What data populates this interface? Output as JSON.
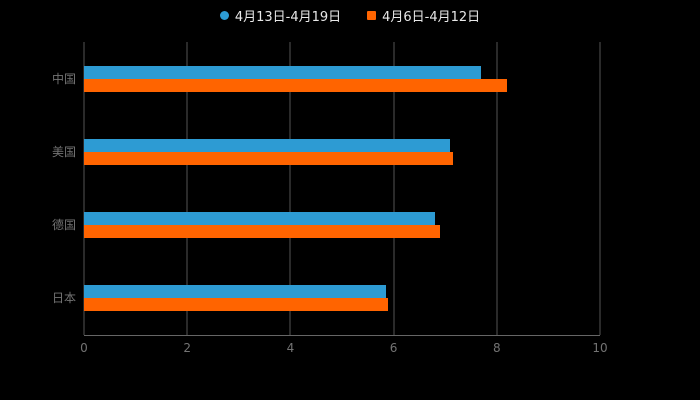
{
  "legend": {
    "items": [
      {
        "label": "4月13日-4月19日",
        "color": "#2d9bd3",
        "shape": "circle"
      },
      {
        "label": "4月6日-4月12日",
        "color": "#ff6400",
        "shape": "square"
      }
    ]
  },
  "chart_data": {
    "type": "bar",
    "orientation": "horizontal",
    "title": "",
    "categories": [
      "中国",
      "美国",
      "德国",
      "日本"
    ],
    "series": [
      {
        "name": "4月13日-4月19日",
        "color": "#2d9bd3",
        "values": [
          7.7,
          7.1,
          6.8,
          5.85
        ]
      },
      {
        "name": "4月6日-4月12日",
        "color": "#ff6400",
        "values": [
          8.2,
          7.15,
          6.9,
          5.9
        ]
      }
    ],
    "xlim": [
      0,
      10
    ],
    "x_ticks": [
      0,
      2,
      4,
      6,
      8,
      10
    ],
    "grid": true,
    "legend_position": "top-center",
    "background_color": "#000000",
    "grid_color": "#555555",
    "axis_text_color": "#737373"
  }
}
